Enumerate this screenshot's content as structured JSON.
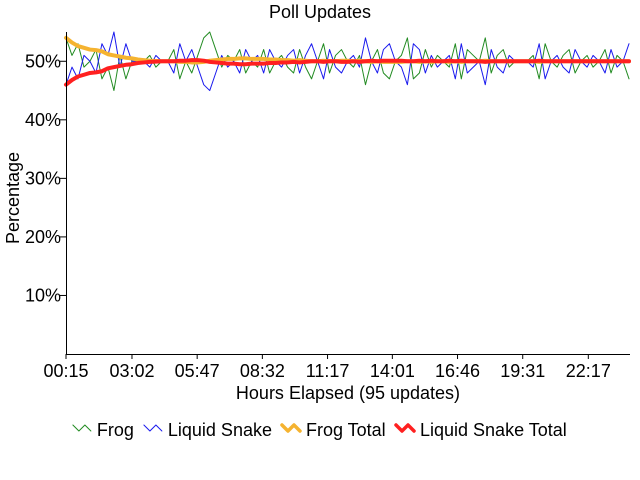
{
  "chart_data": {
    "type": "line",
    "title": "Poll Updates",
    "xlabel": "Hours Elapsed (95 updates)",
    "ylabel": "Percentage",
    "y_unit": "%",
    "ylim": [
      0,
      55
    ],
    "yticks": [
      10,
      20,
      30,
      40,
      50
    ],
    "ytick_labels": [
      "10%",
      "20%",
      "30%",
      "40%",
      "50%"
    ],
    "x_range_hours": [
      0.25,
      24.0
    ],
    "xticks": [
      {
        "label": "00:15",
        "hours": 0.25
      },
      {
        "label": "03:02",
        "hours": 3.0333
      },
      {
        "label": "05:47",
        "hours": 5.7833
      },
      {
        "label": "08:32",
        "hours": 8.5333
      },
      {
        "label": "11:17",
        "hours": 11.2833
      },
      {
        "label": "14:01",
        "hours": 14.0167
      },
      {
        "label": "16:46",
        "hours": 16.7667
      },
      {
        "label": "19:31",
        "hours": 19.5167
      },
      {
        "label": "22:17",
        "hours": 22.2833
      }
    ],
    "grid": false,
    "legend_position": "bottom",
    "series": [
      {
        "name": "Frog",
        "color": "#228b22",
        "style": "thin",
        "values": [
          54,
          51,
          53,
          49,
          50,
          52,
          47,
          49,
          45,
          51,
          47,
          50,
          50,
          50,
          51,
          49,
          50,
          50,
          52,
          47,
          50,
          48,
          51,
          54,
          55,
          52,
          49,
          51,
          50,
          52,
          48,
          50,
          49,
          52,
          48,
          50,
          51,
          49,
          48,
          52,
          49,
          47,
          50,
          53,
          48,
          51,
          52,
          50,
          49,
          51,
          46,
          50,
          52,
          48,
          47,
          50,
          51,
          54,
          47,
          48,
          52,
          49,
          51,
          50,
          49,
          53,
          47,
          52,
          51,
          50,
          54,
          48,
          51,
          52,
          49,
          50,
          50,
          50,
          51,
          47,
          53,
          50,
          49,
          51,
          52,
          48,
          50,
          51,
          49,
          50,
          52,
          48,
          51,
          50,
          47
        ]
      },
      {
        "name": "Liquid Snake",
        "color": "#1a1aee",
        "style": "thin",
        "values": [
          46,
          49,
          47,
          51,
          50,
          48,
          53,
          51,
          55,
          49,
          53,
          50,
          50,
          50,
          49,
          51,
          50,
          50,
          48,
          53,
          50,
          52,
          49,
          46,
          45,
          48,
          51,
          49,
          50,
          48,
          52,
          50,
          51,
          48,
          52,
          50,
          49,
          51,
          52,
          48,
          51,
          53,
          50,
          47,
          52,
          49,
          48,
          50,
          51,
          49,
          54,
          50,
          48,
          52,
          53,
          50,
          49,
          46,
          53,
          52,
          48,
          51,
          49,
          50,
          51,
          47,
          53,
          48,
          49,
          50,
          46,
          52,
          49,
          48,
          51,
          50,
          50,
          50,
          49,
          53,
          47,
          50,
          51,
          49,
          48,
          52,
          50,
          49,
          51,
          50,
          48,
          52,
          49,
          50,
          53
        ]
      },
      {
        "name": "Frog Total",
        "color": "#f5b330",
        "style": "thick",
        "values": [
          54,
          53.2,
          52.6,
          52.3,
          52,
          51.9,
          51.7,
          51.2,
          51,
          50.8,
          50.6,
          50.5,
          50.3,
          50.2,
          50.1,
          50.05,
          50,
          50,
          50,
          49.9,
          49.9,
          49.8,
          49.8,
          49.9,
          50.1,
          50.2,
          50.3,
          50.4,
          50.4,
          50.5,
          50.5,
          50.4,
          50.4,
          50.4,
          50.3,
          50.3,
          50.2,
          50.2,
          50.1,
          50.2,
          50.1,
          50,
          50,
          50.1,
          50,
          50,
          50.1,
          50.1,
          50,
          50.1,
          50,
          49.9,
          50,
          49.9,
          49.9,
          49.9,
          49.9,
          50,
          50,
          49.9,
          50,
          49.9,
          50,
          50,
          49.9,
          50,
          49.9,
          50,
          50,
          50,
          50.1,
          50,
          50,
          50,
          50,
          50,
          50,
          50,
          50,
          49.9,
          50,
          50,
          50,
          50,
          50,
          50,
          50,
          50,
          50,
          50,
          50,
          50,
          50,
          50,
          50
        ]
      },
      {
        "name": "Liquid Snake Total",
        "color": "#ff2020",
        "style": "thick",
        "values": [
          46,
          46.8,
          47.4,
          47.7,
          48,
          48.1,
          48.3,
          48.8,
          49,
          49.2,
          49.4,
          49.5,
          49.7,
          49.8,
          49.9,
          49.95,
          50,
          50,
          50,
          50.1,
          50.1,
          50.2,
          50.2,
          50.1,
          49.9,
          49.8,
          49.7,
          49.6,
          49.6,
          49.5,
          49.5,
          49.6,
          49.6,
          49.6,
          49.7,
          49.7,
          49.8,
          49.8,
          49.9,
          49.8,
          49.9,
          50,
          50,
          49.9,
          50,
          50,
          49.9,
          49.9,
          50,
          49.9,
          50,
          50.1,
          50,
          50.1,
          50.1,
          50.1,
          50.1,
          50,
          50,
          50.1,
          50,
          50.1,
          50,
          50,
          50.1,
          50,
          50.1,
          50,
          50,
          50,
          49.9,
          50,
          50,
          50,
          50,
          50,
          50,
          50,
          50,
          50.1,
          50,
          50,
          50,
          50,
          50,
          50,
          50,
          50,
          50,
          50,
          50,
          50,
          50,
          50,
          50
        ]
      }
    ]
  }
}
